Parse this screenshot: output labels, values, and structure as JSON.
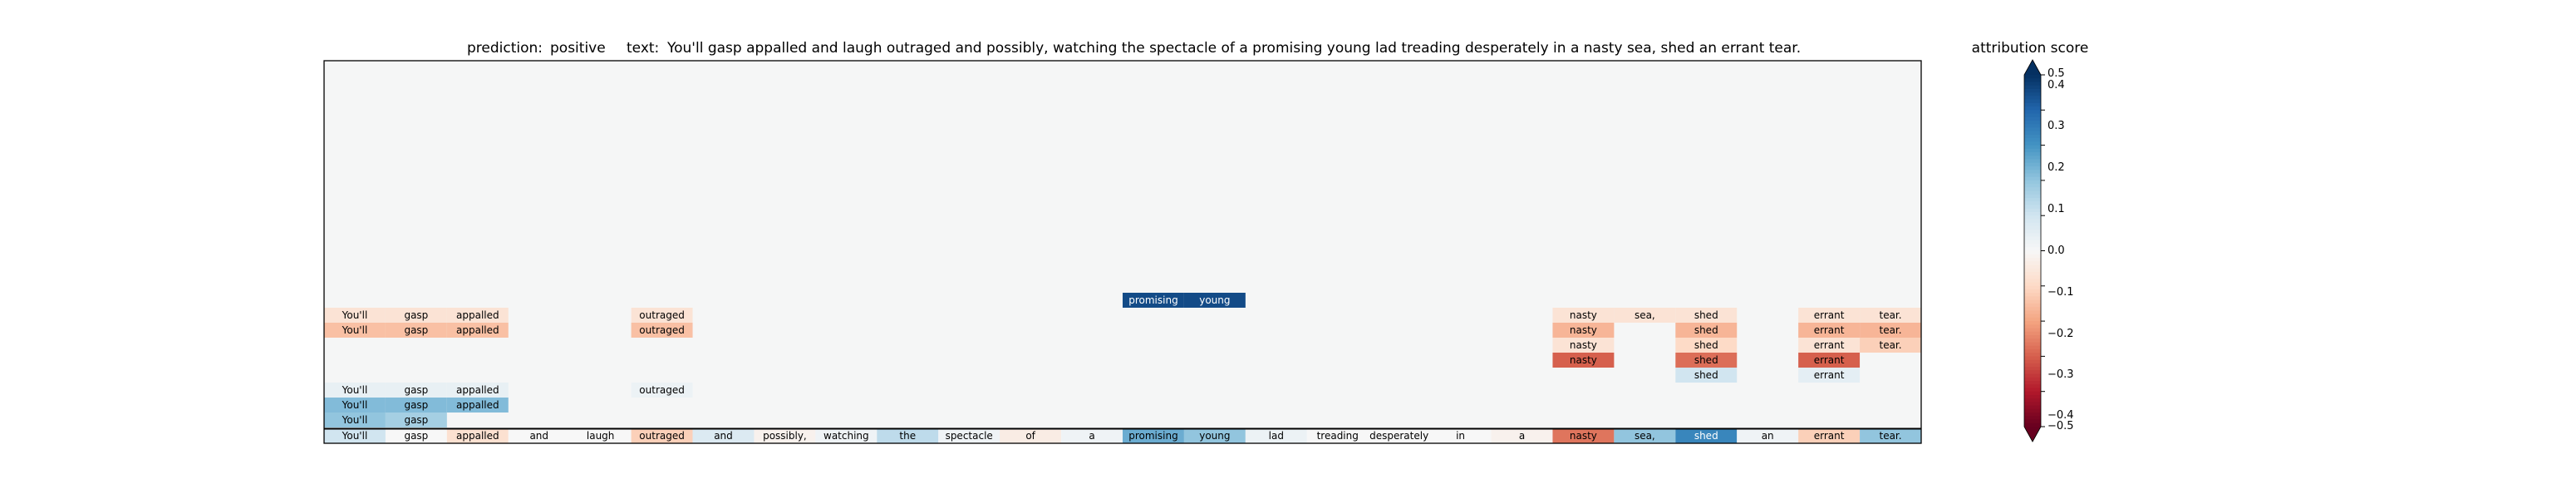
{
  "chart_data": {
    "type": "heatmap",
    "title": {
      "prediction_label": "prediction:",
      "prediction_value": "positive",
      "text_label": "text:",
      "text_value": "You'll gasp appalled and laugh outraged and possibly, watching the spectacle of a promising young lad treading desperately in a nasty sea, shed an errant tear."
    },
    "tokens": [
      "You'll",
      "gasp",
      "appalled",
      "and",
      "laugh",
      "outraged",
      "and",
      "possibly,",
      "watching",
      "the",
      "spectacle",
      "of",
      "a",
      "promising",
      "young",
      "lad",
      "treading",
      "desperately",
      "in",
      "a",
      "nasty",
      "sea,",
      "shed",
      "an",
      "errant",
      "tear."
    ],
    "base_row": [
      0.1,
      0.0,
      -0.08,
      0.0,
      0.0,
      -0.12,
      0.07,
      -0.02,
      0.02,
      0.13,
      0.02,
      -0.04,
      0.02,
      0.25,
      0.2,
      0.03,
      0.0,
      0.0,
      0.0,
      -0.02,
      -0.27,
      0.2,
      0.33,
      0.02,
      -0.12,
      0.2
    ],
    "ragged_rows": [
      {
        "cells": [
          [
            0,
            0.2
          ],
          [
            1,
            0.17
          ]
        ]
      },
      {
        "cells": [
          [
            0,
            0.22
          ],
          [
            1,
            0.22
          ],
          [
            2,
            0.22
          ]
        ]
      },
      {
        "cells": [
          [
            0,
            0.04
          ],
          [
            1,
            0.04
          ],
          [
            2,
            0.04
          ],
          [
            5,
            0.03
          ]
        ]
      },
      {
        "cells": [
          [
            22,
            0.1
          ],
          [
            24,
            0.05
          ]
        ]
      },
      {
        "cells": [
          [
            20,
            -0.3
          ],
          [
            22,
            -0.28
          ],
          [
            24,
            -0.3
          ]
        ]
      },
      {
        "cells": [
          [
            20,
            -0.07
          ],
          [
            22,
            -0.1
          ],
          [
            24,
            -0.07
          ],
          [
            25,
            -0.12
          ]
        ]
      },
      {
        "cells": [
          [
            0,
            -0.15
          ],
          [
            1,
            -0.15
          ],
          [
            2,
            -0.15
          ],
          [
            5,
            -0.15
          ],
          [
            20,
            -0.17
          ],
          [
            22,
            -0.17
          ],
          [
            24,
            -0.17
          ],
          [
            25,
            -0.17
          ]
        ]
      },
      {
        "cells": [
          [
            0,
            -0.07
          ],
          [
            1,
            -0.07
          ],
          [
            2,
            -0.07
          ],
          [
            5,
            -0.07
          ],
          [
            20,
            -0.07
          ],
          [
            21,
            -0.07
          ],
          [
            22,
            -0.07
          ],
          [
            24,
            -0.07
          ],
          [
            25,
            -0.07
          ]
        ]
      },
      {
        "cells": [
          [
            13,
            0.45
          ],
          [
            14,
            0.45
          ]
        ]
      }
    ],
    "colorbar": {
      "label": "attribution score",
      "min": -0.5,
      "max": 0.5,
      "colormap": "RdBu",
      "extend": "both",
      "ticks": [
        "0.5",
        "0.4",
        "0.3",
        "0.2",
        "0.1",
        "0.0",
        "−0.1",
        "−0.2",
        "−0.3",
        "−0.4",
        "−0.5"
      ]
    },
    "colors": {
      "panel_background": "#f5f6f6",
      "text_dark": "#000000",
      "text_light": "#ffffff"
    }
  }
}
